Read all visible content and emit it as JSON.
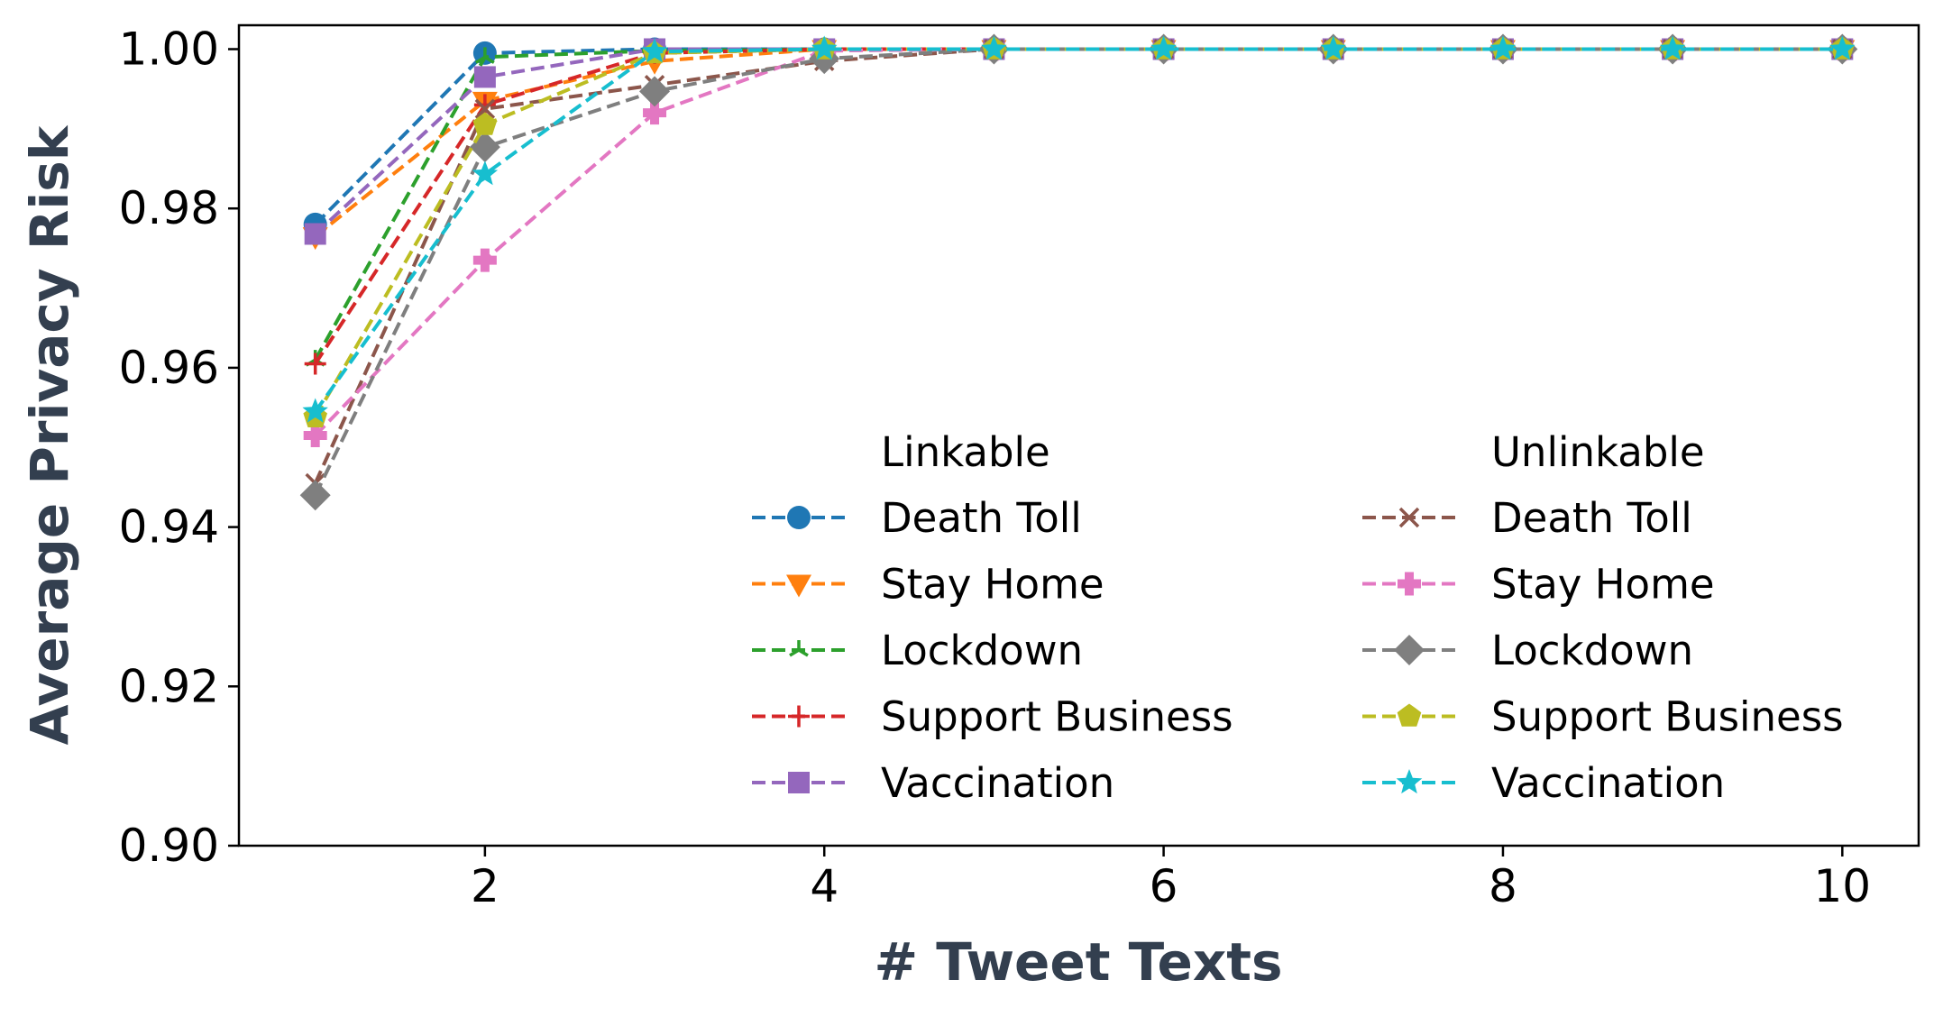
{
  "chart_data": {
    "type": "line",
    "xlabel": "# Tweet Texts",
    "ylabel": "Average Privacy Risk",
    "xlim": [
      0.55,
      10.45
    ],
    "ylim": [
      0.9,
      1.003
    ],
    "xticks": [
      2,
      4,
      6,
      8,
      10
    ],
    "yticks": [
      0.9,
      0.92,
      0.94,
      0.96,
      0.98,
      1.0
    ],
    "xtick_labels": [
      "2",
      "4",
      "6",
      "8",
      "10"
    ],
    "ytick_labels": [
      "0.90",
      "0.92",
      "0.94",
      "0.96",
      "0.98",
      "1.00"
    ],
    "grid": false,
    "legend_position": "lower-right",
    "legend_groups": [
      {
        "title": "Linkable",
        "series_indices": [
          0,
          1,
          2,
          3,
          4
        ]
      },
      {
        "title": "Unlinkable",
        "series_indices": [
          5,
          6,
          7,
          8,
          9
        ]
      }
    ],
    "x": [
      1,
      2,
      3,
      4,
      5,
      6,
      7,
      8,
      9,
      10
    ],
    "series": [
      {
        "name": "Death Toll",
        "group": "Linkable",
        "color": "#1f77b4",
        "marker": "circle",
        "values": [
          0.978,
          0.9995,
          1.0,
          1.0,
          1.0,
          1.0,
          1.0,
          1.0,
          1.0,
          1.0
        ]
      },
      {
        "name": "Stay Home",
        "group": "Linkable",
        "color": "#ff7f0e",
        "marker": "triangle-down",
        "values": [
          0.9765,
          0.9935,
          0.9985,
          1.0,
          1.0,
          1.0,
          1.0,
          1.0,
          1.0,
          1.0
        ]
      },
      {
        "name": "Lockdown",
        "group": "Linkable",
        "color": "#2ca02c",
        "marker": "tri-star",
        "values": [
          0.961,
          0.999,
          0.9998,
          1.0,
          1.0,
          1.0,
          1.0,
          1.0,
          1.0,
          1.0
        ]
      },
      {
        "name": "Support Business",
        "group": "Linkable",
        "color": "#d62728",
        "marker": "plus",
        "values": [
          0.9605,
          0.993,
          0.9995,
          1.0,
          1.0,
          1.0,
          1.0,
          1.0,
          1.0,
          1.0
        ]
      },
      {
        "name": "Vaccination",
        "group": "Linkable",
        "color": "#9467bd",
        "marker": "square",
        "values": [
          0.9768,
          0.9965,
          1.0,
          1.0,
          1.0,
          1.0,
          1.0,
          1.0,
          1.0,
          1.0
        ]
      },
      {
        "name": "Death Toll",
        "group": "Unlinkable",
        "color": "#8c564b",
        "marker": "x",
        "values": [
          0.9455,
          0.9925,
          0.9955,
          0.9985,
          1.0,
          1.0,
          1.0,
          1.0,
          1.0,
          1.0
        ]
      },
      {
        "name": "Stay Home",
        "group": "Unlinkable",
        "color": "#e377c2",
        "marker": "plus-filled",
        "values": [
          0.9515,
          0.9735,
          0.992,
          0.9998,
          1.0,
          1.0,
          1.0,
          1.0,
          1.0,
          1.0
        ]
      },
      {
        "name": "Lockdown",
        "group": "Unlinkable",
        "color": "#7f7f7f",
        "marker": "diamond",
        "values": [
          0.944,
          0.9877,
          0.9947,
          0.9988,
          1.0,
          1.0,
          1.0,
          1.0,
          1.0,
          1.0
        ]
      },
      {
        "name": "Support Business",
        "group": "Unlinkable",
        "color": "#bcbd22",
        "marker": "pentagon",
        "values": [
          0.9538,
          0.9905,
          0.9995,
          1.0,
          1.0,
          1.0,
          1.0,
          1.0,
          1.0,
          1.0
        ]
      },
      {
        "name": "Vaccination",
        "group": "Unlinkable",
        "color": "#17becf",
        "marker": "star",
        "values": [
          0.9545,
          0.9843,
          0.9997,
          1.0,
          1.0,
          1.0,
          1.0,
          1.0,
          1.0,
          1.0
        ]
      }
    ]
  }
}
